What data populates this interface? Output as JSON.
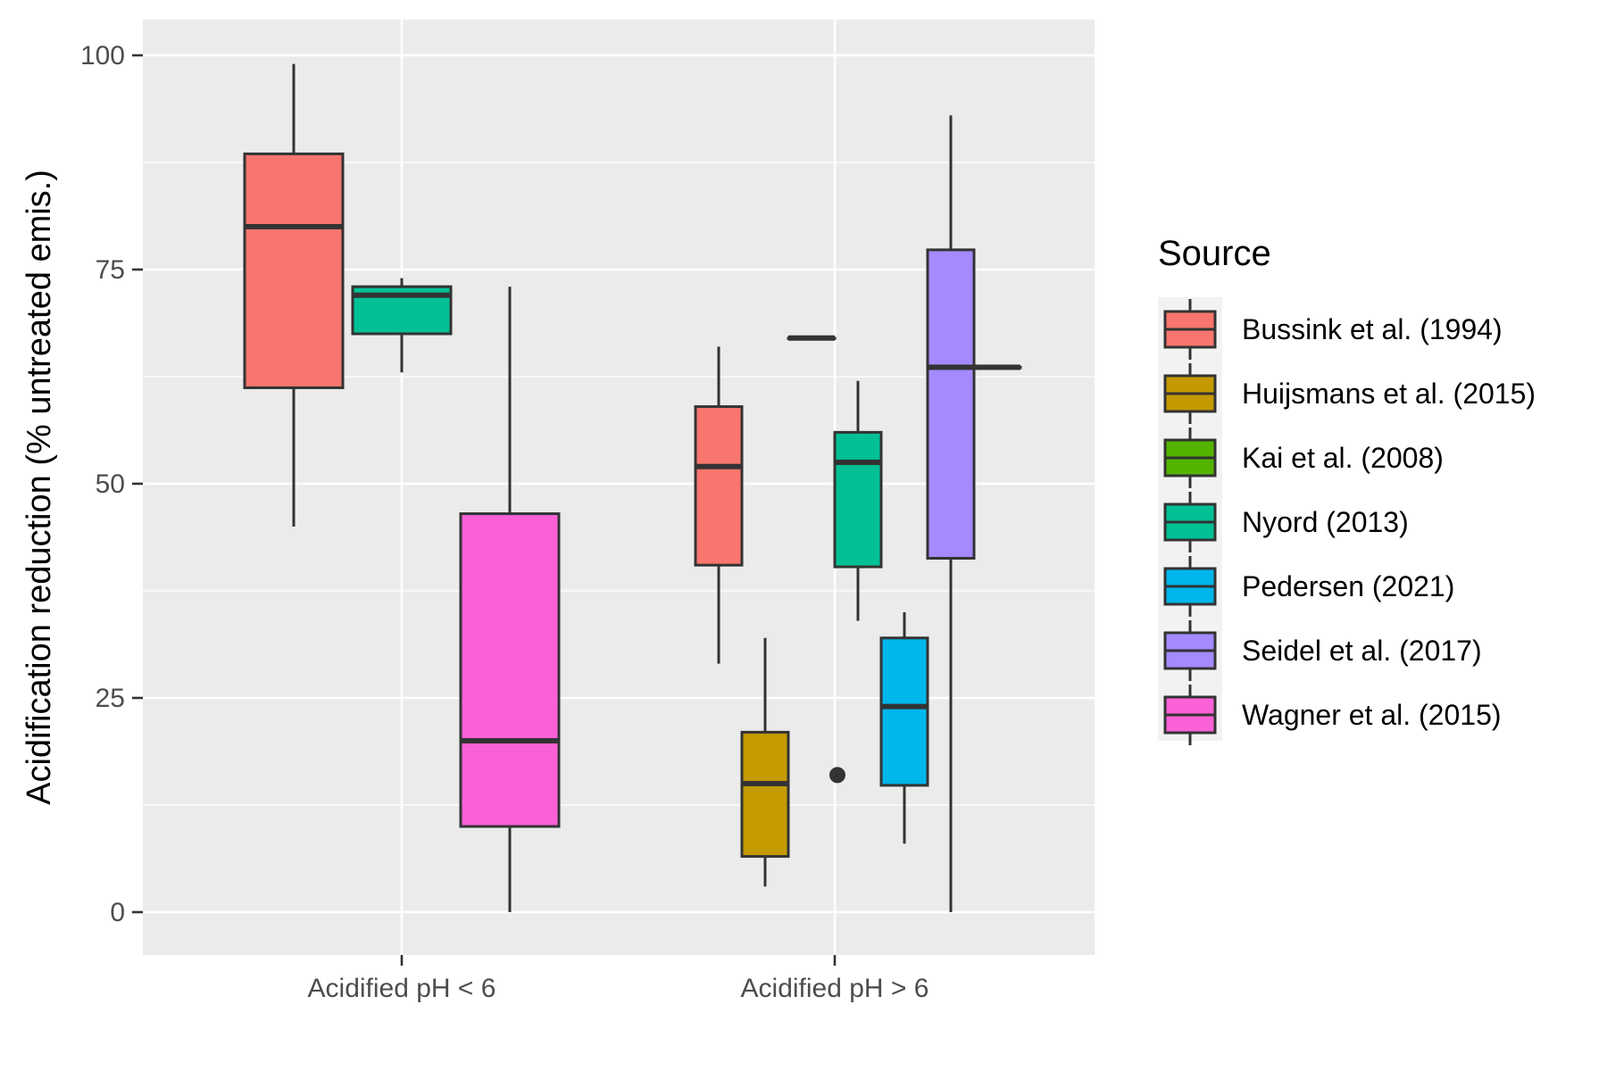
{
  "chart_data": {
    "type": "boxplot",
    "ylabel": "Acidification reduction (% untreated emis.)",
    "ylim": [
      -5,
      104
    ],
    "y_ticks": [
      "0",
      "25",
      "50",
      "75",
      "100"
    ],
    "categories": [
      "Acidified pH < 6",
      "Acidified pH > 6"
    ],
    "grid": true,
    "legend": {
      "title": "Source",
      "placement": "right"
    },
    "series": [
      {
        "name": "Bussink et al. (1994)",
        "color": "#F8766D",
        "boxes": [
          {
            "category": "Acidified pH < 6",
            "min": 45,
            "q1": 61.2,
            "median": 80,
            "q3": 88.5,
            "max": 99
          },
          {
            "category": "Acidified pH > 6",
            "min": 29,
            "q1": 40.5,
            "median": 52,
            "q3": 59,
            "max": 66
          }
        ]
      },
      {
        "name": "Huijsmans et al. (2015)",
        "color": "#C49A00",
        "boxes": [
          {
            "category": "Acidified pH > 6",
            "min": 3,
            "q1": 6.5,
            "median": 15,
            "q3": 21,
            "max": 32
          }
        ]
      },
      {
        "name": "Kai et al. (2008)",
        "color": "#53B400",
        "boxes": [
          {
            "category": "Acidified pH > 6",
            "min": 67,
            "q1": 67,
            "median": 67,
            "q3": 67,
            "max": 67
          }
        ]
      },
      {
        "name": "Nyord (2013)",
        "color": "#00C094",
        "boxes": [
          {
            "category": "Acidified pH < 6",
            "min": 63,
            "q1": 67.5,
            "median": 72,
            "q3": 73,
            "max": 74
          },
          {
            "category": "Acidified pH > 6",
            "min": 34,
            "q1": 40.3,
            "median": 52.5,
            "q3": 56,
            "max": 62
          }
        ]
      },
      {
        "name": "Pedersen (2021)",
        "color": "#00B6EB",
        "boxes": [
          {
            "category": "Acidified pH > 6",
            "min": 8,
            "q1": 14.8,
            "median": 24,
            "q3": 32,
            "max": 35,
            "outliers": [
              16
            ]
          }
        ]
      },
      {
        "name": "Seidel et al. (2017)",
        "color": "#A58AFF",
        "boxes": [
          {
            "category": "Acidified pH > 6",
            "min": 0,
            "q1": 41.3,
            "median": 63.6,
            "q3": 77.3,
            "max": 93
          }
        ]
      },
      {
        "name": "Wagner et al. (2015)",
        "color": "#FB61D7",
        "boxes": [
          {
            "category": "Acidified pH < 6",
            "min": 0,
            "q1": 10,
            "median": 20,
            "q3": 46.5,
            "max": 73
          },
          {
            "category": "Acidified pH > 6",
            "min": 63.6,
            "q1": 63.6,
            "median": 63.6,
            "q3": 63.6,
            "max": 63.6
          }
        ]
      }
    ]
  }
}
